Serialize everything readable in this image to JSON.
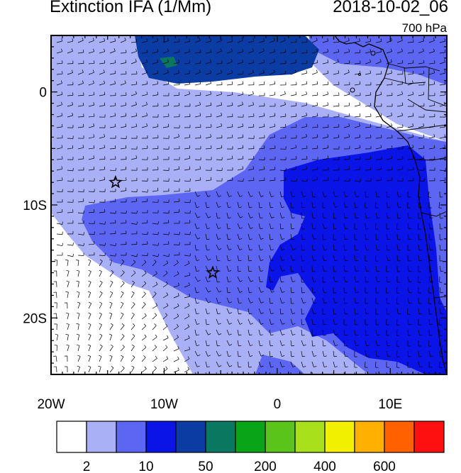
{
  "header": {
    "title": "Extinction IFA (1/Mm)",
    "datetime": "2018-10-02_06",
    "level": "700 hPa"
  },
  "map": {
    "lon_range": [
      -20,
      15
    ],
    "lat_range": [
      -25,
      5
    ],
    "x_ticks": [
      {
        "lon": -20,
        "label": "20W"
      },
      {
        "lon": -10,
        "label": "10W"
      },
      {
        "lon": 0,
        "label": "0"
      },
      {
        "lon": 10,
        "label": "10E"
      }
    ],
    "y_ticks": [
      {
        "lat": 0,
        "label": "0"
      },
      {
        "lat": -10,
        "label": "10S"
      },
      {
        "lat": -20,
        "label": "20S"
      }
    ],
    "markers": [
      {
        "type": "star",
        "lon": -14.3,
        "lat": -8.0
      },
      {
        "type": "star",
        "lon": -5.7,
        "lat": -16.0
      }
    ],
    "wind_barbs": true
  },
  "colorbar": {
    "colors": [
      "#ffffff",
      "#aab0f6",
      "#5c66f2",
      "#0a14e6",
      "#0a3ca4",
      "#0a7860",
      "#0aa418",
      "#5ac41a",
      "#a8e01c",
      "#f0f000",
      "#ffb000",
      "#ff6000",
      "#ff1010"
    ],
    "labels": [
      {
        "after_box": 1,
        "text": "2"
      },
      {
        "after_box": 3,
        "text": "10"
      },
      {
        "after_box": 5,
        "text": "50"
      },
      {
        "after_box": 7,
        "text": "200"
      },
      {
        "after_box": 9,
        "text": "400"
      },
      {
        "after_box": 11,
        "text": "600"
      }
    ]
  }
}
